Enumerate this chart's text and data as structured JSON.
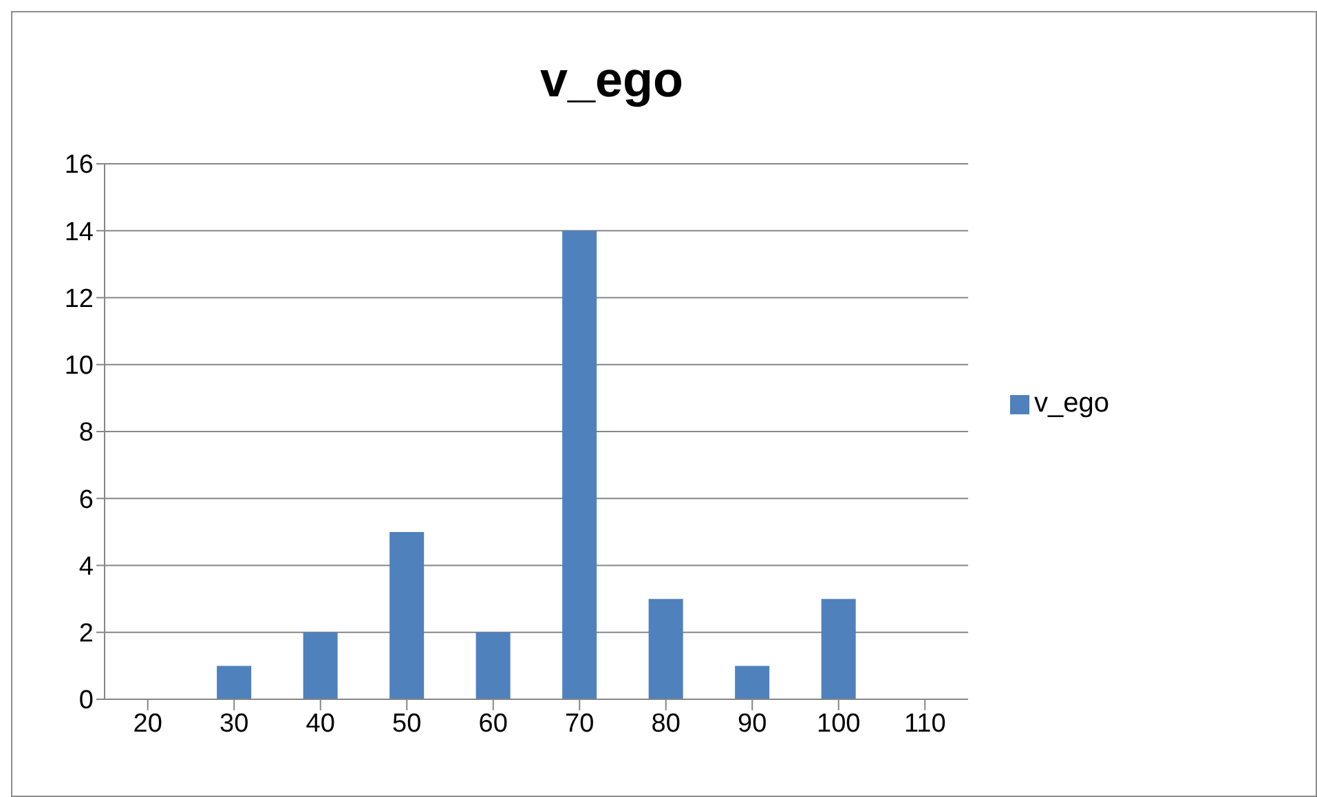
{
  "chart_data": {
    "type": "bar",
    "title": "v_ego",
    "categories": [
      "20",
      "30",
      "40",
      "50",
      "60",
      "70",
      "80",
      "90",
      "100",
      "110"
    ],
    "series": [
      {
        "name": "v_ego",
        "color": "#4f81bd",
        "values": [
          0,
          1,
          2,
          5,
          2,
          14,
          3,
          1,
          3,
          0
        ]
      }
    ],
    "ylim": [
      0,
      16
    ],
    "yticks": [
      0,
      2,
      4,
      6,
      8,
      10,
      12,
      14,
      16
    ],
    "grid": "y",
    "legend": "right"
  }
}
